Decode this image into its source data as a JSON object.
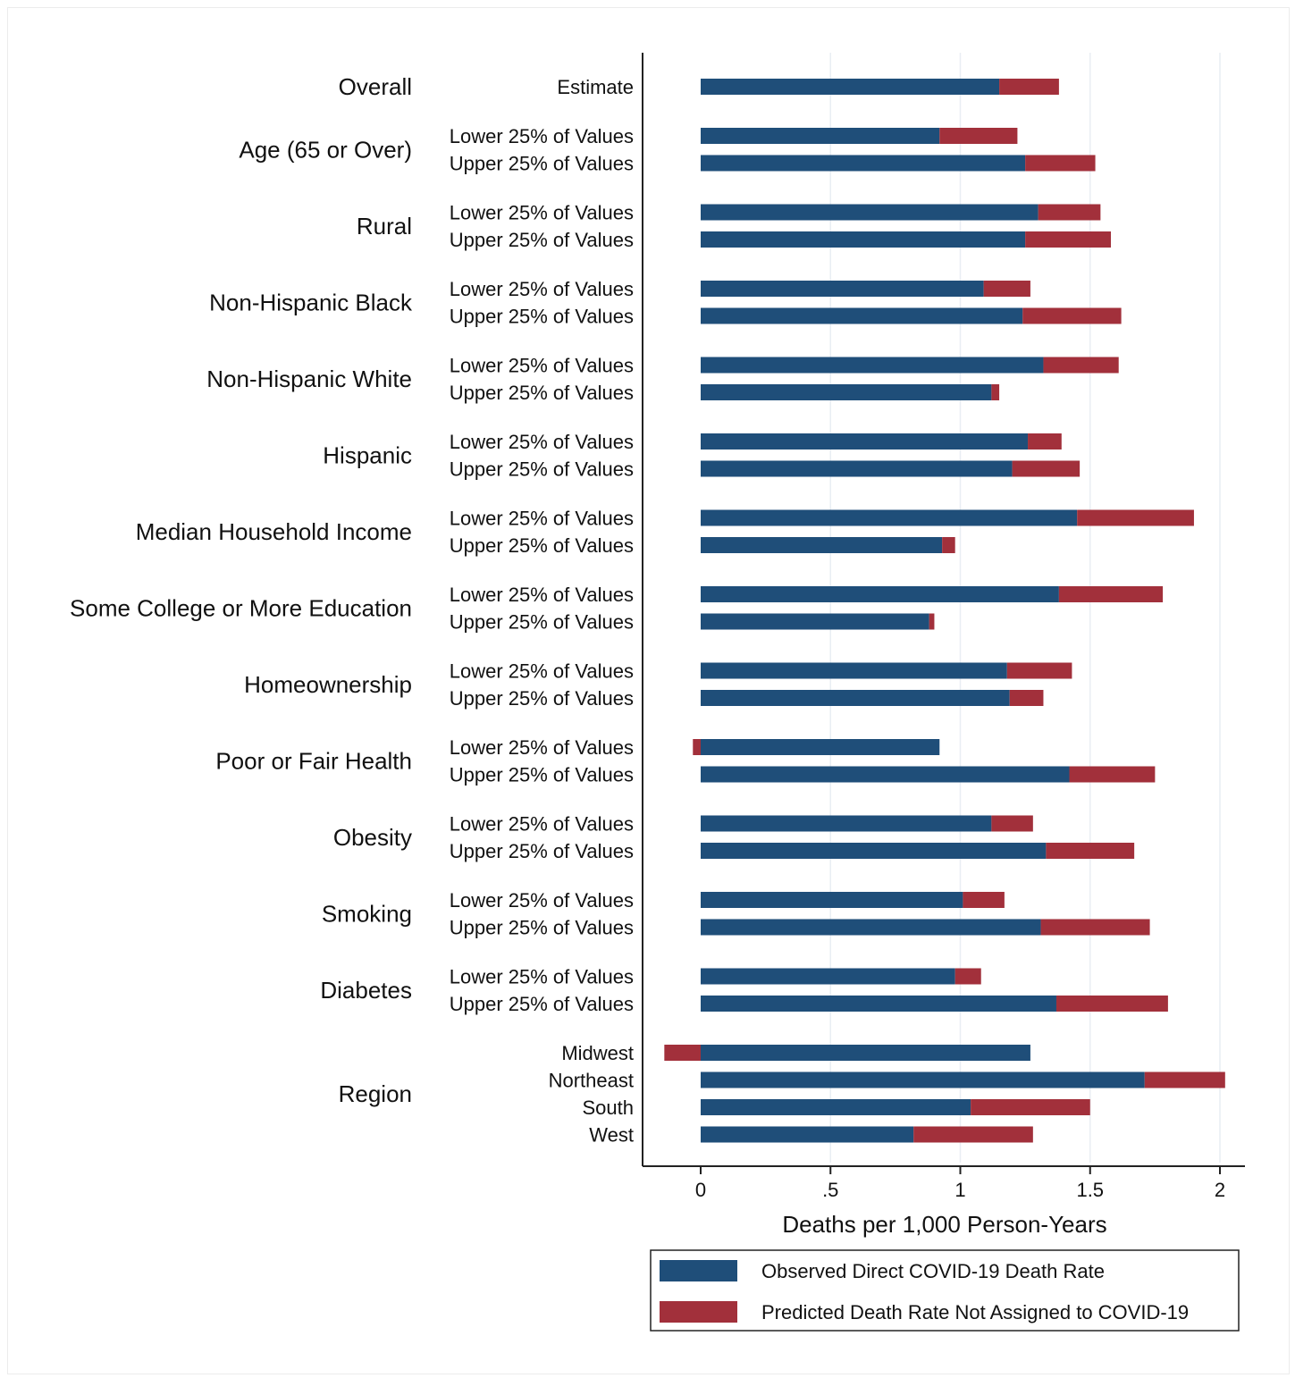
{
  "chart_data": {
    "type": "bar",
    "orientation": "horizontal",
    "stacked": true,
    "xlabel": "Deaths per 1,000 Person-Years",
    "xlim": [
      -0.23,
      2.1
    ],
    "xticks": [
      {
        "value": 0,
        "label": "0"
      },
      {
        "value": 0.5,
        "label": ".5"
      },
      {
        "value": 1,
        "label": "1"
      },
      {
        "value": 1.5,
        "label": "1.5"
      },
      {
        "value": 2,
        "label": "2"
      }
    ],
    "grid": true,
    "legend_position": "bottom",
    "series": [
      {
        "name": "Observed Direct COVID-19 Death Rate",
        "color": "#1f4e79"
      },
      {
        "name": "Predicted Death Rate Not Assigned to COVID-19",
        "color": "#a2303b"
      }
    ],
    "groups": [
      {
        "label": "Overall",
        "rows": [
          {
            "label": "Estimate",
            "observed": 1.15,
            "predicted": 0.23
          }
        ]
      },
      {
        "label": "Age (65 or Over)",
        "rows": [
          {
            "label": "Lower 25% of Values",
            "observed": 0.92,
            "predicted": 0.3
          },
          {
            "label": "Upper 25% of Values",
            "observed": 1.25,
            "predicted": 0.27
          }
        ]
      },
      {
        "label": "Rural",
        "rows": [
          {
            "label": "Lower 25% of Values",
            "observed": 1.3,
            "predicted": 0.24
          },
          {
            "label": "Upper 25% of Values",
            "observed": 1.25,
            "predicted": 0.33
          }
        ]
      },
      {
        "label": "Non-Hispanic Black",
        "rows": [
          {
            "label": "Lower 25% of Values",
            "observed": 1.09,
            "predicted": 0.18
          },
          {
            "label": "Upper 25% of Values",
            "observed": 1.24,
            "predicted": 0.38
          }
        ]
      },
      {
        "label": "Non-Hispanic White",
        "rows": [
          {
            "label": "Lower 25% of Values",
            "observed": 1.32,
            "predicted": 0.29
          },
          {
            "label": "Upper 25% of Values",
            "observed": 1.12,
            "predicted": 0.03
          }
        ]
      },
      {
        "label": "Hispanic",
        "rows": [
          {
            "label": "Lower 25% of Values",
            "observed": 1.26,
            "predicted": 0.13
          },
          {
            "label": "Upper 25% of Values",
            "observed": 1.2,
            "predicted": 0.26
          }
        ]
      },
      {
        "label": "Median Household Income",
        "rows": [
          {
            "label": "Lower 25% of Values",
            "observed": 1.45,
            "predicted": 0.45
          },
          {
            "label": "Upper 25% of Values",
            "observed": 0.93,
            "predicted": 0.05
          }
        ]
      },
      {
        "label": "Some College or More Education",
        "rows": [
          {
            "label": "Lower 25% of Values",
            "observed": 1.38,
            "predicted": 0.4
          },
          {
            "label": "Upper 25% of Values",
            "observed": 0.88,
            "predicted": 0.02
          }
        ]
      },
      {
        "label": "Homeownership",
        "rows": [
          {
            "label": "Lower 25% of Values",
            "observed": 1.18,
            "predicted": 0.25
          },
          {
            "label": "Upper 25% of Values",
            "observed": 1.19,
            "predicted": 0.13
          }
        ]
      },
      {
        "label": "Poor or Fair Health",
        "rows": [
          {
            "label": "Lower 25% of Values",
            "observed": 0.92,
            "predicted": -0.03
          },
          {
            "label": "Upper 25% of Values",
            "observed": 1.42,
            "predicted": 0.33
          }
        ]
      },
      {
        "label": "Obesity",
        "rows": [
          {
            "label": "Lower 25% of Values",
            "observed": 1.12,
            "predicted": 0.16
          },
          {
            "label": "Upper 25% of Values",
            "observed": 1.33,
            "predicted": 0.34
          }
        ]
      },
      {
        "label": "Smoking",
        "rows": [
          {
            "label": "Lower 25% of Values",
            "observed": 1.01,
            "predicted": 0.16
          },
          {
            "label": "Upper 25% of Values",
            "observed": 1.31,
            "predicted": 0.42
          }
        ]
      },
      {
        "label": "Diabetes",
        "rows": [
          {
            "label": "Lower 25% of Values",
            "observed": 0.98,
            "predicted": 0.1
          },
          {
            "label": "Upper 25% of Values",
            "observed": 1.37,
            "predicted": 0.43
          }
        ]
      },
      {
        "label": "Region",
        "rows": [
          {
            "label": "Midwest",
            "observed": 1.27,
            "predicted": -0.14
          },
          {
            "label": "Northeast",
            "observed": 1.71,
            "predicted": 0.31
          },
          {
            "label": "South",
            "observed": 1.04,
            "predicted": 0.46
          },
          {
            "label": "West",
            "observed": 0.82,
            "predicted": 0.46
          }
        ]
      }
    ]
  }
}
